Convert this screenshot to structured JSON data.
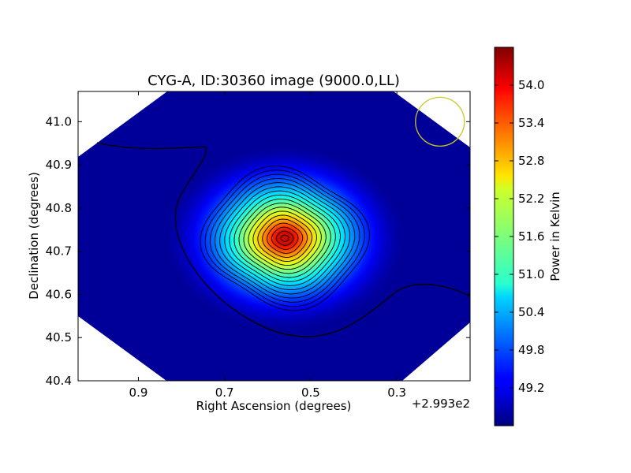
{
  "chart_data": {
    "type": "heatmap",
    "title": "CYG-A, ID:30360 image (9000.0,LL)",
    "xlabel": "Right Ascension (degrees)",
    "ylabel": "Declination (degrees)",
    "x_offset_label": "+2.993e2",
    "x_ticks": [
      "0.9",
      "0.7",
      "0.5",
      "0.3"
    ],
    "x_tick_values": [
      0.9,
      0.7,
      0.5,
      0.3
    ],
    "y_ticks": [
      "41.0",
      "40.9",
      "40.8",
      "40.7",
      "40.6",
      "40.5",
      "40.4"
    ],
    "y_tick_values": [
      41.0,
      40.9,
      40.8,
      40.7,
      40.6,
      40.5,
      40.4
    ],
    "xlim": [
      1.04,
      0.13
    ],
    "ylim": [
      40.4,
      41.07
    ],
    "x_axis_inverted": true,
    "colormap": "jet",
    "colorbar": {
      "label": "Power in Kelvin",
      "range": [
        48.6,
        54.6
      ],
      "ticks": [
        "49.2",
        "49.8",
        "50.4",
        "51.0",
        "51.6",
        "52.2",
        "52.8",
        "53.4",
        "54.0"
      ],
      "tick_values": [
        49.2,
        49.8,
        50.4,
        51.0,
        51.6,
        52.2,
        52.8,
        53.4,
        54.0
      ]
    },
    "peak": {
      "ra": 0.56,
      "dec": 40.73,
      "value": 54.5
    },
    "background_value": 48.75,
    "contour_count": 18,
    "beam_circle": {
      "ra": 0.2,
      "dec": 41.0,
      "color": "#c8c81e"
    }
  }
}
